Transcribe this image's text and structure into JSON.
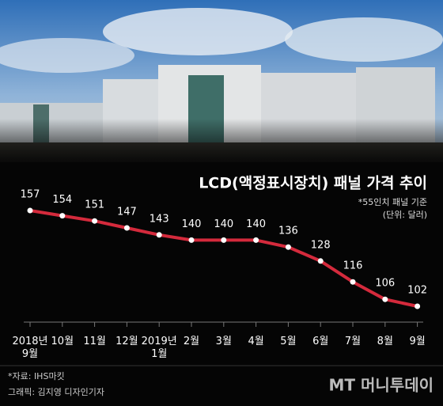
{
  "chart_data": {
    "type": "line",
    "title": "LCD(액정표시장치) 패널 가격 추이",
    "subtitle": "*55인치 패널 기준",
    "unit": "(단위: 달러)",
    "categories": [
      "2018년\n9월",
      "10월",
      "11월",
      "12월",
      "2019년\n1월",
      "2월",
      "3월",
      "4월",
      "5월",
      "6월",
      "7월",
      "8월",
      "9월"
    ],
    "values": [
      157,
      154,
      151,
      147,
      143,
      140,
      140,
      140,
      136,
      128,
      116,
      106,
      102
    ],
    "color": "#d42a3c",
    "source": "*자료: IHS마킷",
    "credit": "그래픽: 김지영 디자인기자",
    "logo": "MT 머니투데이"
  }
}
